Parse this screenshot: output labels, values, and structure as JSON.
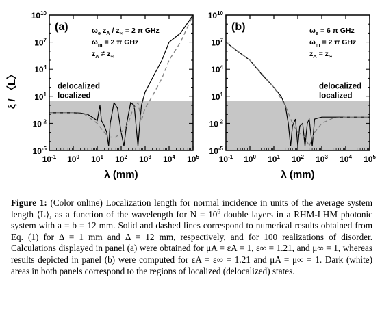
{
  "figure": {
    "y_axis_label": "ξ / 〈L〉",
    "x_axis_label": "λ (mm)",
    "x_tick_labels": [
      "10-1",
      "100",
      "101",
      "102",
      "103",
      "104",
      "105"
    ],
    "y_tick_labels": [
      "10-5",
      "10-2",
      "101",
      "104",
      "107",
      "1010"
    ],
    "region_labels": {
      "delocalized": "delocalized",
      "localized": "localized"
    }
  },
  "chart_data": [
    {
      "type": "line",
      "panel_label": "(a)",
      "annotations": [
        "ωe zA / z∞ = 2 π GHz",
        "ωm = 2 π GHz",
        "zA ≠ z∞"
      ],
      "xlabel": "λ (mm)",
      "ylabel": "ξ / 〈L〉",
      "x_scale": "log",
      "y_scale": "log",
      "xlim": [
        0.1,
        100000
      ],
      "ylim": [
        1e-05,
        10000000000
      ],
      "shaded_localized_below": 3,
      "series": [
        {
          "style": "solid",
          "points": [
            [
              0.1,
              0.15
            ],
            [
              0.3,
              0.15
            ],
            [
              0.7,
              0.15
            ],
            [
              1,
              0.15
            ],
            [
              2,
              0.14
            ],
            [
              4,
              0.1
            ],
            [
              7,
              0.04
            ],
            [
              10,
              0.02
            ],
            [
              13,
              1
            ],
            [
              15,
              0.02
            ],
            [
              20,
              0.005
            ],
            [
              25,
              0.001
            ],
            [
              30,
              3e-05
            ],
            [
              35,
              0.01
            ],
            [
              50,
              2
            ],
            [
              70,
              0.5
            ],
            [
              100,
              0.001
            ],
            [
              130,
              3e-05
            ],
            [
              170,
              0.01
            ],
            [
              250,
              2
            ],
            [
              350,
              1
            ],
            [
              500,
              3e-05
            ],
            [
              600,
              0.01
            ],
            [
              700,
              1
            ],
            [
              1000,
              30
            ],
            [
              2000,
              1000
            ],
            [
              5000,
              100000
            ],
            [
              10000,
              10000000
            ],
            [
              30000,
              100000000
            ],
            [
              100000,
              10000000000
            ]
          ]
        },
        {
          "style": "dashed",
          "points": [
            [
              0.1,
              0.15
            ],
            [
              1,
              0.15
            ],
            [
              3,
              0.1
            ],
            [
              10,
              0.01
            ],
            [
              20,
              0.001
            ],
            [
              30,
              0.0003
            ],
            [
              60,
              0.0003
            ],
            [
              100,
              0.001
            ],
            [
              200,
              0.01
            ],
            [
              300,
              0.3
            ],
            [
              500,
              2
            ],
            [
              700,
              0.02
            ],
            [
              1000,
              0.5
            ],
            [
              2000,
              10
            ],
            [
              5000,
              1000
            ],
            [
              10000,
              100000
            ],
            [
              30000,
              10000000
            ],
            [
              100000,
              10000000000
            ]
          ]
        }
      ]
    },
    {
      "type": "line",
      "panel_label": "(b)",
      "annotations": [
        "ωe = 6 π GHz",
        "ωm = 2 π GHz",
        "zA = z∞"
      ],
      "xlabel": "λ (mm)",
      "ylabel": "",
      "x_scale": "log",
      "y_scale": "log",
      "xlim": [
        0.1,
        100000
      ],
      "ylim": [
        1e-05,
        10000000000
      ],
      "shaded_localized_below": 3,
      "series": [
        {
          "style": "solid",
          "points": [
            [
              0.1,
              10000000
            ],
            [
              0.3,
              1000000
            ],
            [
              1,
              100000
            ],
            [
              3,
              3000
            ],
            [
              10,
              100
            ],
            [
              20,
              10
            ],
            [
              30,
              1
            ],
            [
              40,
              0.01
            ],
            [
              50,
              3e-05
            ],
            [
              60,
              0.005
            ],
            [
              80,
              0.03
            ],
            [
              100,
              3e-05
            ],
            [
              120,
              0.005
            ],
            [
              160,
              0.01
            ],
            [
              200,
              3e-05
            ],
            [
              250,
              0.01
            ],
            [
              300,
              0.03
            ],
            [
              400,
              3e-05
            ],
            [
              500,
              0.03
            ],
            [
              1000,
              0.05
            ],
            [
              3000,
              0.05
            ],
            [
              10000,
              0.05
            ],
            [
              100000,
              0.05
            ]
          ]
        },
        {
          "style": "dashed",
          "points": [
            [
              0.1,
              10000000
            ],
            [
              1,
              100000
            ],
            [
              10,
              100
            ],
            [
              30,
              1
            ],
            [
              60,
              0.01
            ],
            [
              100,
              0.001
            ],
            [
              200,
              0.0003
            ],
            [
              300,
              3e-05
            ],
            [
              500,
              0.001
            ],
            [
              1000,
              0.01
            ],
            [
              3000,
              0.04
            ],
            [
              10000,
              0.05
            ],
            [
              100000,
              0.05
            ]
          ]
        }
      ]
    }
  ],
  "caption": {
    "label": "Figure 1:",
    "text_1": "(Color online) Localization length for normal incidence in units of the average system length ⟨L⟩, as a function of the wavelength for N = 10",
    "sup_1": "6",
    "text_2": " double layers in a RHM-LHM photonic system with a = b = 12 mm. Solid and dashed lines correspond to numerical results obtained from Eq. (1) for Δ = 1 mm and Δ = 12 mm, respectively, and for 100 realizations of disorder. Calculations displayed in panel (a) were obtained for μA = εA = 1, ε∞ = 1.21, and μ∞ = 1, whereas results depicted in panel (b) were computed for εA = ε∞ = 1.21 and μA = μ∞ = 1. Dark (white) areas in both panels correspond to the regions of localized (delocalized) states."
  }
}
